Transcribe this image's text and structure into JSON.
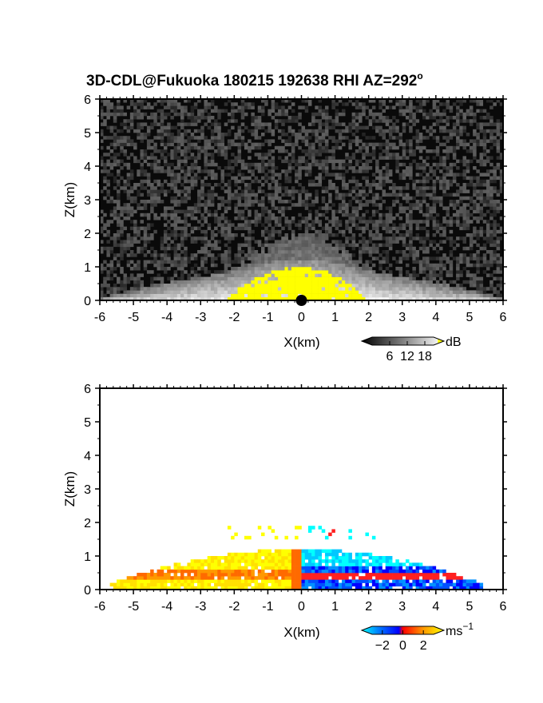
{
  "title": "3D-CDL@Fukuoka 180215 192638 RHI AZ=292",
  "title_superscript": "o",
  "chart_data": [
    {
      "type": "heatmap",
      "panel": "reflectivity",
      "xlabel": "X(km)",
      "ylabel": "Z(km)",
      "xlim": [
        -6,
        6
      ],
      "ylim": [
        0,
        6
      ],
      "xticks": [
        "-6",
        "-5",
        "-4",
        "-3",
        "-2",
        "-1",
        "0",
        "1",
        "2",
        "3",
        "4",
        "5",
        "6"
      ],
      "yticks": [
        "0",
        "1",
        "2",
        "3",
        "4",
        "5",
        "6"
      ],
      "colormap": "grayscale",
      "saturation_color": "#ffff00",
      "colorbar": {
        "unit": "dB",
        "ticks": [
          "6",
          "12",
          "18"
        ],
        "tick_values": [
          6,
          12,
          18
        ],
        "range": [
          0,
          21
        ]
      },
      "features": {
        "background_noise_db": 2,
        "low_layer_top_km": 0.9,
        "plume_top_km": 2.0,
        "saturated_region_x_km": [
          -2.3,
          2.0
        ],
        "saturated_region_top_km": 1.0,
        "radar_site_x_km": 0
      }
    },
    {
      "type": "heatmap",
      "panel": "doppler_velocity",
      "xlabel": "X(km)",
      "ylabel": "Z(km)",
      "xlim": [
        -6,
        6
      ],
      "ylim": [
        0,
        6
      ],
      "xticks": [
        "-6",
        "-5",
        "-4",
        "-3",
        "-2",
        "-1",
        "0",
        "1",
        "2",
        "3",
        "4",
        "5",
        "6"
      ],
      "yticks": [
        "0",
        "1",
        "2",
        "3",
        "4",
        "5",
        "6"
      ],
      "colormap": "diverging cyan-blue-red-yellow",
      "colorbar": {
        "unit": "ms",
        "unit_exponent": "−1",
        "ticks": [
          "−2",
          "0",
          "2"
        ],
        "tick_values": [
          -2,
          0,
          2
        ],
        "range": [
          -3,
          3
        ]
      },
      "features": {
        "positive_region_x_km": [
          -5.7,
          0
        ],
        "negative_region_x_km": [
          0,
          5.4
        ],
        "layer_top_km": 1.1,
        "elevated_echo_km": [
          1.5,
          1.9
        ]
      }
    }
  ]
}
